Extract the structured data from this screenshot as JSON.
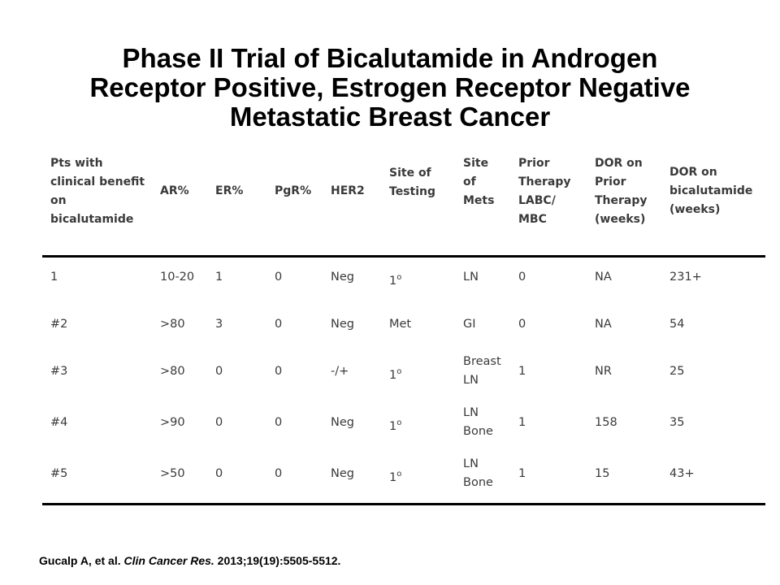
{
  "slide": {
    "title_lines": [
      "Phase II Trial of Bicalutamide in Androgen",
      "Receptor Positive, Estrogen Receptor Negative",
      "Metastatic Breast Cancer"
    ]
  },
  "table": {
    "headers": [
      [
        "Pts with",
        "clinical benefit",
        "on",
        "bicalutamide"
      ],
      [
        "AR%"
      ],
      [
        "ER%"
      ],
      [
        "PgR%"
      ],
      [
        "HER2"
      ],
      [
        "Site of",
        "Testing"
      ],
      [
        "Site",
        "of",
        "Mets"
      ],
      [
        "Prior",
        "Therapy",
        "LABC/",
        "MBC"
      ],
      [
        "DOR on",
        "Prior",
        "Therapy",
        "(weeks)"
      ],
      [
        "DOR on",
        "bicalutamide",
        "(weeks)"
      ]
    ],
    "rows": [
      {
        "pt": "1",
        "ar": "10-20",
        "er": "1",
        "pgr": "0",
        "her2": "Neg",
        "site": "1",
        "site_sup": "o",
        "mets": [
          "LN"
        ],
        "prior": "0",
        "dor_prior": "NA",
        "dor_bic": "231+"
      },
      {
        "pt": "#2",
        "ar": ">80",
        "er": "3",
        "pgr": "0",
        "her2": "Neg",
        "site": "Met",
        "site_sup": "",
        "mets": [
          "GI"
        ],
        "prior": "0",
        "dor_prior": "NA",
        "dor_bic": "54"
      },
      {
        "pt": "#3",
        "ar": ">80",
        "er": "0",
        "pgr": "0",
        "her2": "-/+",
        "site": "1",
        "site_sup": "o",
        "mets": [
          "Breast",
          "LN"
        ],
        "prior": "1",
        "dor_prior": "NR",
        "dor_bic": "25"
      },
      {
        "pt": "#4",
        "ar": ">90",
        "er": "0",
        "pgr": "0",
        "her2": "Neg",
        "site": "1",
        "site_sup": "o",
        "mets": [
          "LN",
          "Bone"
        ],
        "prior": "1",
        "dor_prior": "158",
        "dor_bic": "35"
      },
      {
        "pt": "#5",
        "ar": ">50",
        "er": "0",
        "pgr": "0",
        "her2": "Neg",
        "site": "1",
        "site_sup": "o",
        "mets": [
          "LN",
          "Bone"
        ],
        "prior": "1",
        "dor_prior": "15",
        "dor_bic": "43+"
      }
    ]
  },
  "citation": {
    "authors": "Gucalp A, et al.",
    "journal": "Clin Cancer Res.",
    "ref": "2013;19(19):5505-5512."
  }
}
